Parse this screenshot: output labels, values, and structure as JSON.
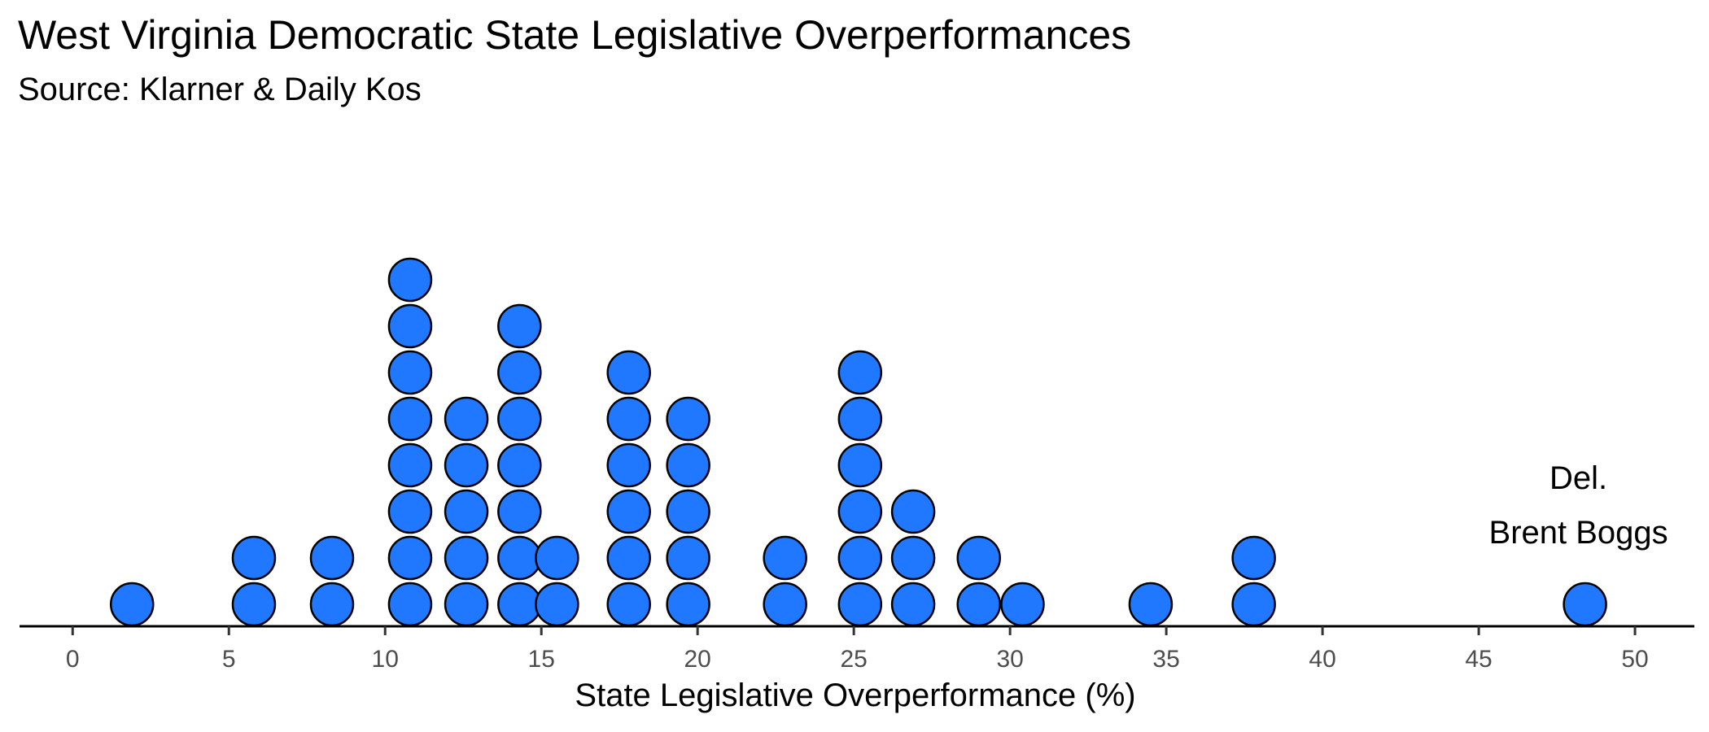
{
  "title": "West Virginia Democratic State Legislative Overperformances",
  "subtitle": "Source: Klarner & Daily Kos",
  "chart_data": {
    "type": "dotplot",
    "xlabel": "State Legislative Overperformance (%)",
    "ylabel": "",
    "xlim": [
      -1.7,
      51.9
    ],
    "xticks": [
      "0",
      "5",
      "10",
      "15",
      "20",
      "25",
      "30",
      "35",
      "40",
      "45",
      "50"
    ],
    "grid": false,
    "dot_color": "#1f78ff",
    "dot_outline": "#000000",
    "bins": [
      {
        "x": 1.9,
        "count": 1
      },
      {
        "x": 5.8,
        "count": 2
      },
      {
        "x": 8.3,
        "count": 2
      },
      {
        "x": 10.8,
        "count": 8
      },
      {
        "x": 12.6,
        "count": 5
      },
      {
        "x": 14.3,
        "count": 7
      },
      {
        "x": 15.5,
        "count": 2
      },
      {
        "x": 17.8,
        "count": 6
      },
      {
        "x": 19.7,
        "count": 5
      },
      {
        "x": 22.8,
        "count": 2
      },
      {
        "x": 25.2,
        "count": 6
      },
      {
        "x": 26.9,
        "count": 3
      },
      {
        "x": 29.0,
        "count": 2
      },
      {
        "x": 30.4,
        "count": 1
      },
      {
        "x": 34.5,
        "count": 1
      },
      {
        "x": 37.8,
        "count": 2
      },
      {
        "x": 48.4,
        "count": 1
      }
    ],
    "annotation": {
      "lines": [
        "Del.",
        "Brent Boggs"
      ],
      "x": 48.4
    }
  }
}
